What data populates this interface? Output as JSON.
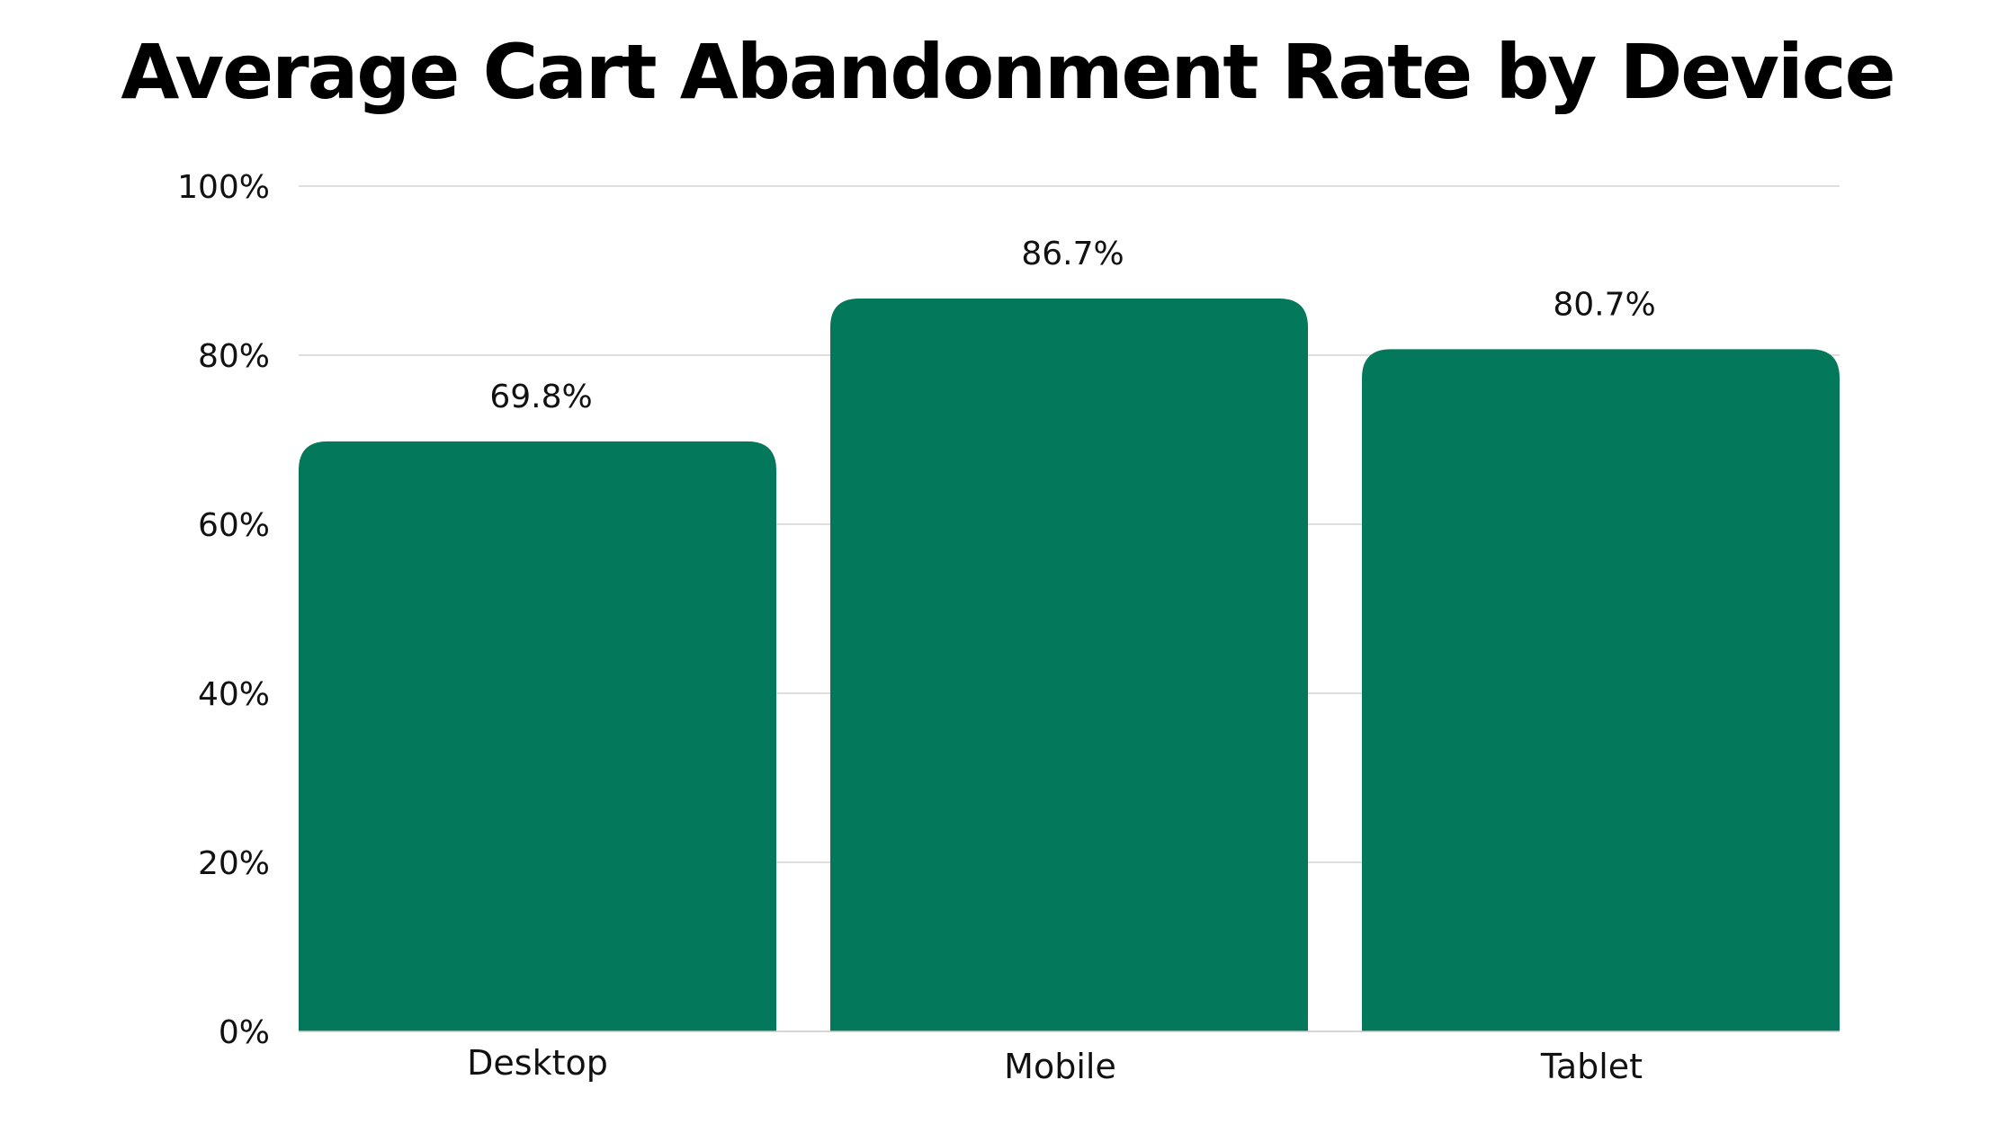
{
  "chart_data": {
    "type": "bar",
    "title": "Average Cart Abandonment Rate by Device",
    "categories": [
      "Desktop",
      "Mobile",
      "Tablet"
    ],
    "values": [
      69.8,
      86.7,
      80.7
    ],
    "value_labels": [
      "69.8%",
      "86.7%",
      "80.7%"
    ],
    "ylim": [
      0,
      100
    ],
    "yticks": [
      0,
      20,
      40,
      60,
      80,
      100
    ],
    "ytick_labels": [
      "0%",
      "20%",
      "40%",
      "60%",
      "80%",
      "100%"
    ],
    "xlabel": "",
    "ylabel": "",
    "grid": true,
    "legend": false,
    "bar_color": "#04785A",
    "grid_color": "#d4d4d4"
  }
}
